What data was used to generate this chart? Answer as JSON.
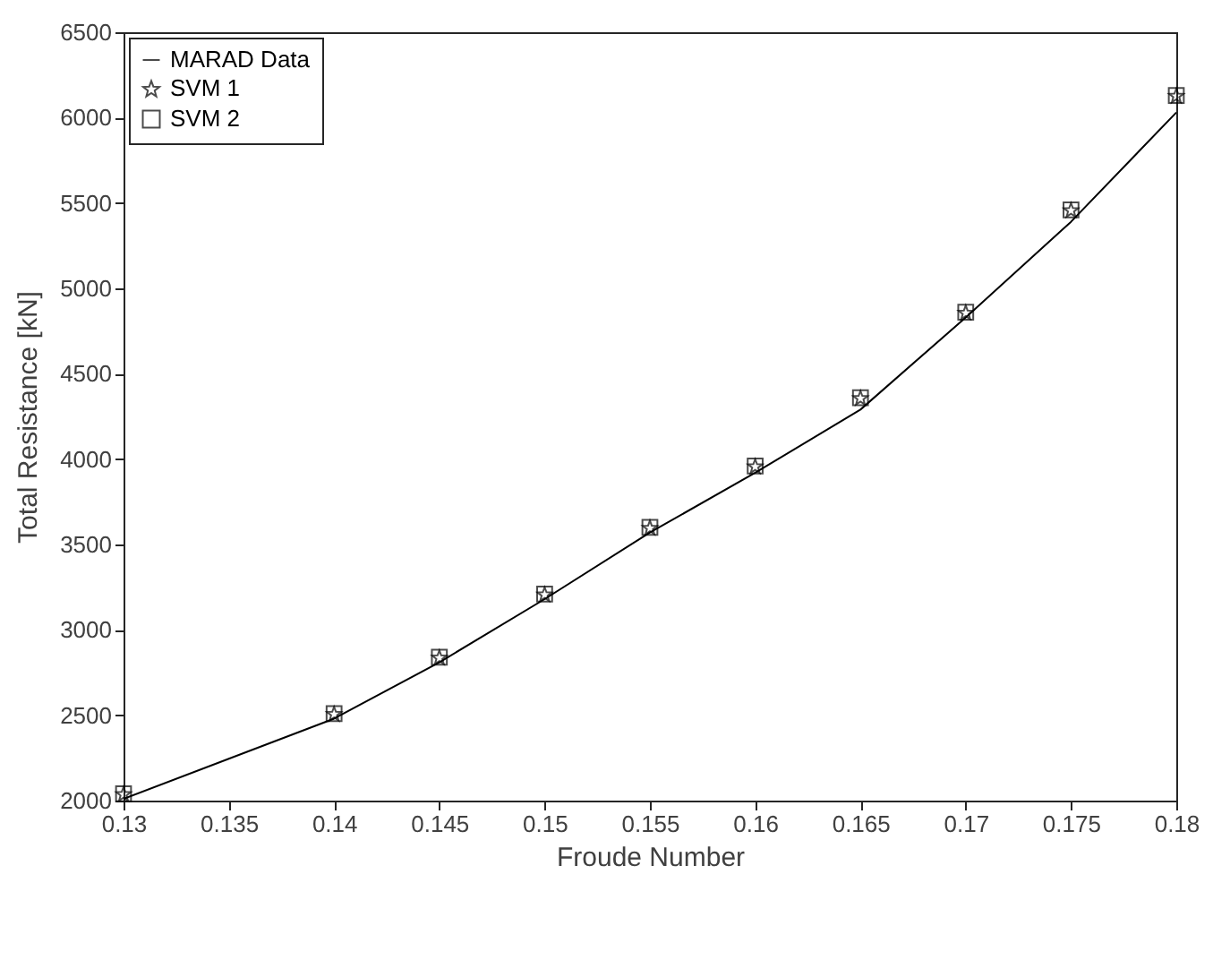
{
  "chart_data": {
    "type": "line",
    "xlabel": "Froude Number",
    "ylabel": "Total Resistance [kN]",
    "series": [
      {
        "name": "MARAD Data",
        "color": "#000000",
        "x": [
          0.13,
          0.14,
          0.145,
          0.15,
          0.155,
          0.16,
          0.165,
          0.17,
          0.175,
          0.18
        ],
        "values": [
          2010,
          2480,
          2810,
          3180,
          3570,
          3920,
          4290,
          4830,
          5390,
          6030
        ]
      },
      {
        "name": "SVM 1",
        "type": "scatter",
        "marker": "star",
        "color": "#000000",
        "x": [
          0.13,
          0.14,
          0.145,
          0.15,
          0.155,
          0.16,
          0.165,
          0.17,
          0.175,
          0.18
        ],
        "values": [
          2040,
          2510,
          2840,
          3210,
          3600,
          3960,
          4360,
          4860,
          5460,
          6130
        ]
      },
      {
        "name": "SVM 2",
        "type": "scatter",
        "marker": "square",
        "color": "#000000",
        "x": [
          0.13,
          0.14,
          0.145,
          0.15,
          0.155,
          0.16,
          0.165,
          0.17,
          0.175,
          0.18
        ],
        "values": [
          2040,
          2510,
          2840,
          3210,
          3600,
          3960,
          4360,
          4860,
          5460,
          6130
        ]
      }
    ],
    "xlim": [
      0.13,
      0.18
    ],
    "xticks": [
      0.13,
      0.135,
      0.14,
      0.145,
      0.15,
      0.155,
      0.16,
      0.165,
      0.17,
      0.175,
      0.18
    ],
    "ylim": [
      2000,
      6500
    ],
    "yticks": [
      2000,
      2500,
      3000,
      3500,
      4000,
      4500,
      5000,
      5500,
      6000,
      6500
    ],
    "grid": false,
    "legend": "top left"
  }
}
